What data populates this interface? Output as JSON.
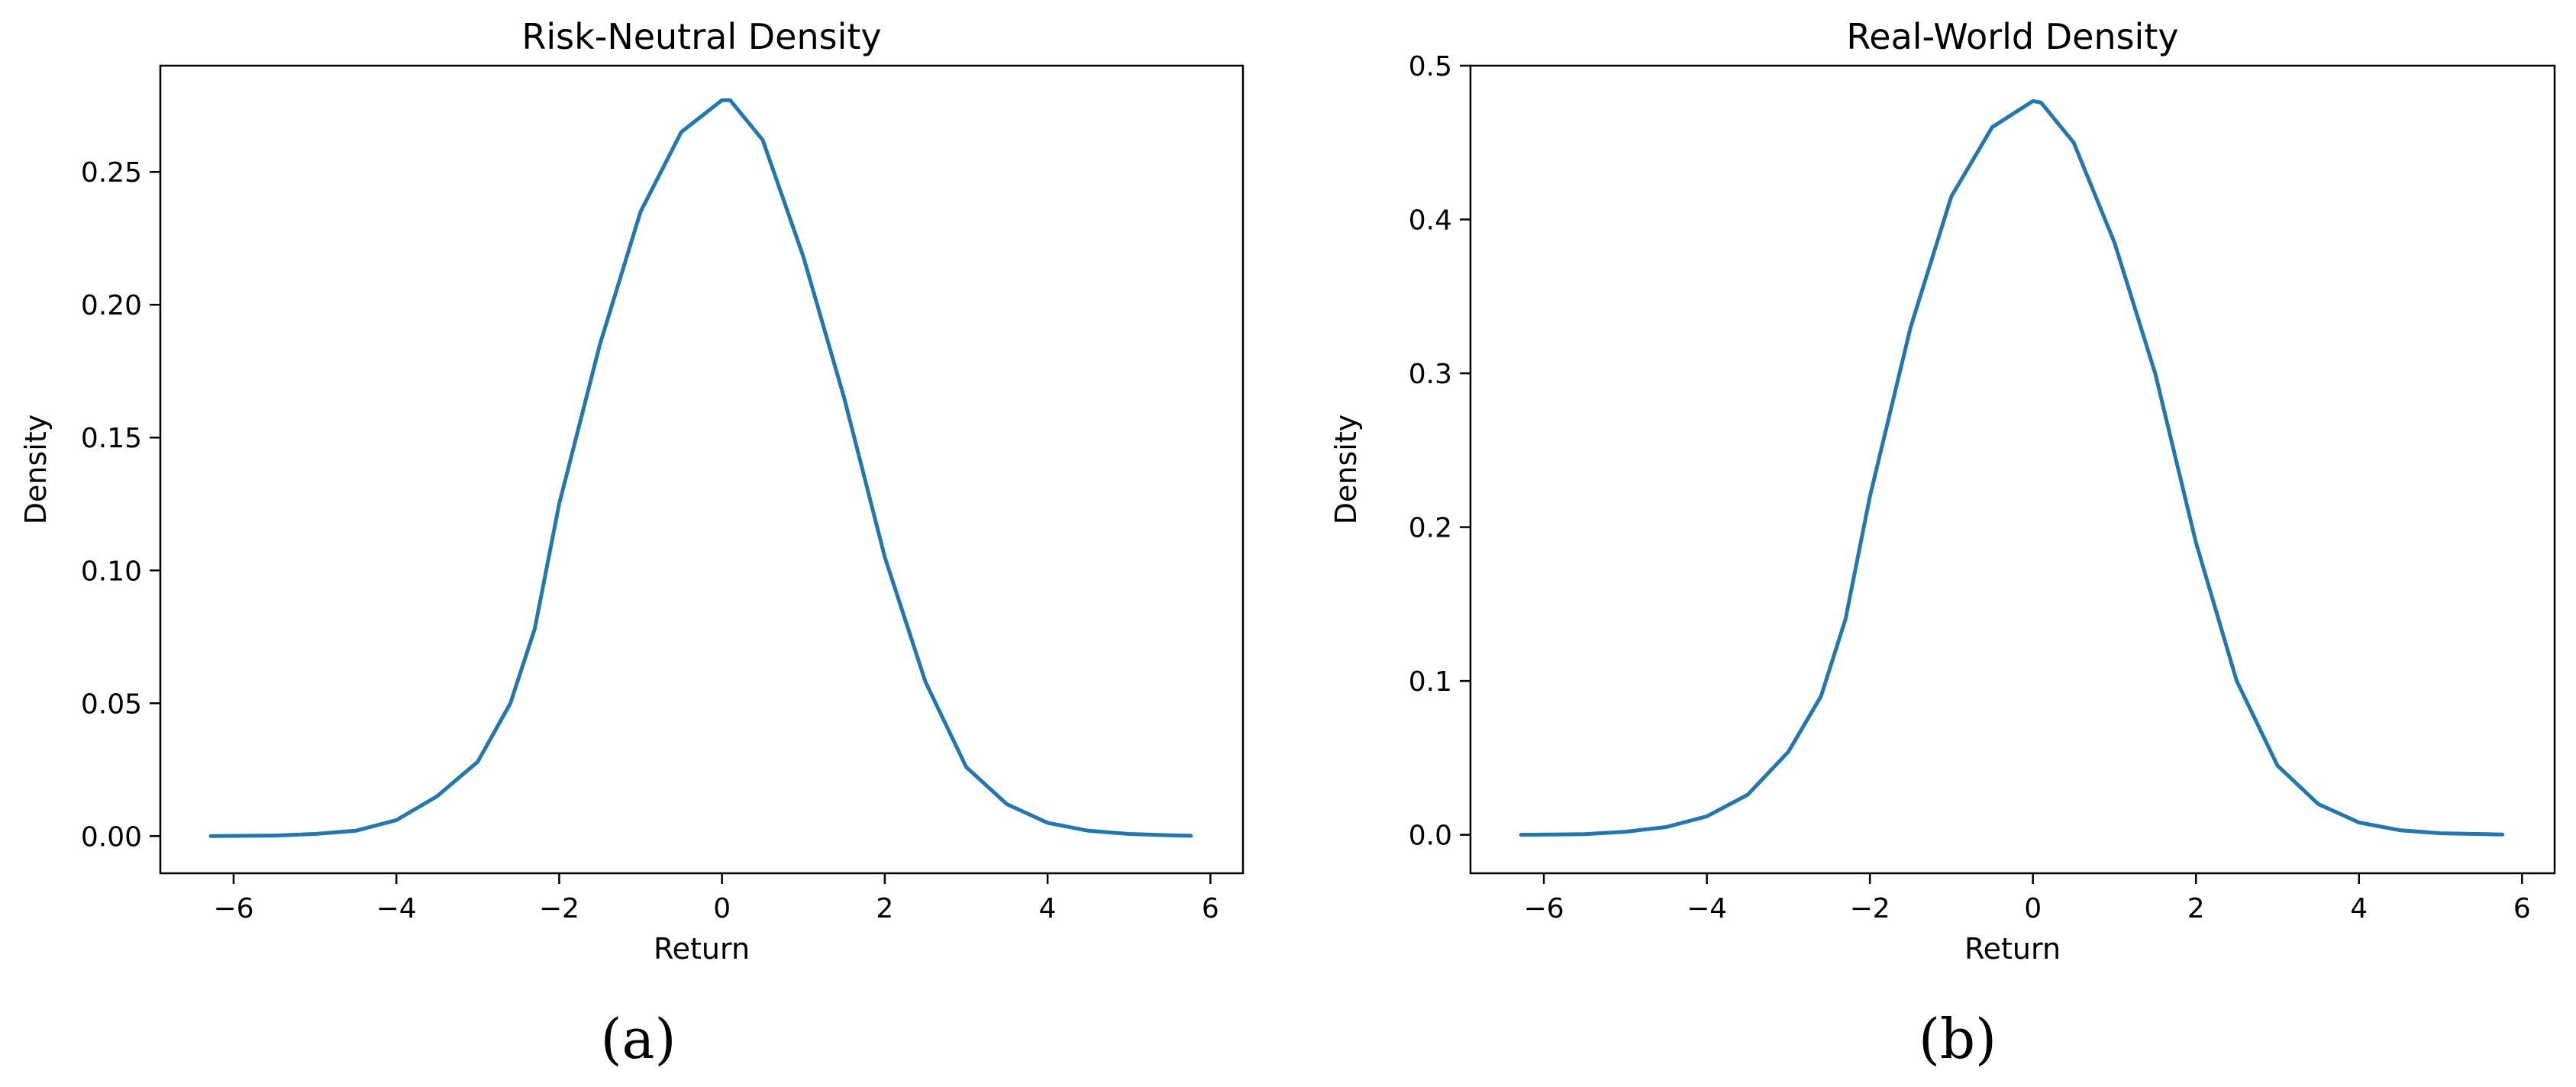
{
  "panel_captions": [
    "(a)",
    "(b)"
  ],
  "chart_data": [
    {
      "type": "line",
      "title": "Risk-Neutral Density",
      "xlabel": "Return",
      "ylabel": "Density",
      "xlim": [
        -6.9,
        6.4
      ],
      "ylim": [
        -0.014,
        0.29
      ],
      "xticks": [
        -6,
        -4,
        -2,
        0,
        2,
        4,
        6
      ],
      "yticks": [
        0.0,
        0.05,
        0.1,
        0.15,
        0.2,
        0.25
      ],
      "ytick_labels": [
        "0.00",
        "0.05",
        "0.10",
        "0.15",
        "0.20",
        "0.25"
      ],
      "grid": false,
      "series": [
        {
          "color": "#1f77b4",
          "x": [
            -6.28,
            -5.5,
            -5.0,
            -4.5,
            -4.0,
            -3.5,
            -3.0,
            -2.6,
            -2.3,
            -2.0,
            -1.5,
            -1.0,
            -0.5,
            0.0,
            0.1,
            0.5,
            1.0,
            1.5,
            2.0,
            2.5,
            3.0,
            3.5,
            4.0,
            4.5,
            5.0,
            5.5,
            5.76
          ],
          "values": [
            0.0,
            0.0002,
            0.0008,
            0.002,
            0.006,
            0.015,
            0.028,
            0.05,
            0.078,
            0.125,
            0.185,
            0.235,
            0.265,
            0.277,
            0.277,
            0.262,
            0.218,
            0.165,
            0.105,
            0.058,
            0.026,
            0.012,
            0.005,
            0.002,
            0.0008,
            0.0003,
            0.0001
          ]
        }
      ]
    },
    {
      "type": "line",
      "title": "Real-World Density",
      "xlabel": "Return",
      "ylabel": "Density",
      "xlim": [
        -6.9,
        6.4
      ],
      "ylim": [
        -0.025,
        0.5
      ],
      "xticks": [
        -6,
        -4,
        -2,
        0,
        2,
        4,
        6
      ],
      "yticks": [
        0.0,
        0.1,
        0.2,
        0.3,
        0.4,
        0.5
      ],
      "ytick_labels": [
        "0.0",
        "0.1",
        "0.2",
        "0.3",
        "0.4",
        "0.5"
      ],
      "grid": false,
      "series": [
        {
          "color": "#1f77b4",
          "x": [
            -6.28,
            -5.5,
            -5.0,
            -4.5,
            -4.0,
            -3.5,
            -3.0,
            -2.6,
            -2.3,
            -2.0,
            -1.5,
            -1.0,
            -0.5,
            0.0,
            0.1,
            0.5,
            1.0,
            1.5,
            2.0,
            2.5,
            3.0,
            3.5,
            4.0,
            4.5,
            5.0,
            5.5,
            5.76
          ],
          "values": [
            0.0,
            0.0004,
            0.002,
            0.005,
            0.012,
            0.026,
            0.054,
            0.09,
            0.14,
            0.22,
            0.33,
            0.415,
            0.46,
            0.477,
            0.476,
            0.45,
            0.385,
            0.3,
            0.19,
            0.1,
            0.045,
            0.02,
            0.008,
            0.003,
            0.001,
            0.0005,
            0.0002
          ]
        }
      ]
    }
  ]
}
